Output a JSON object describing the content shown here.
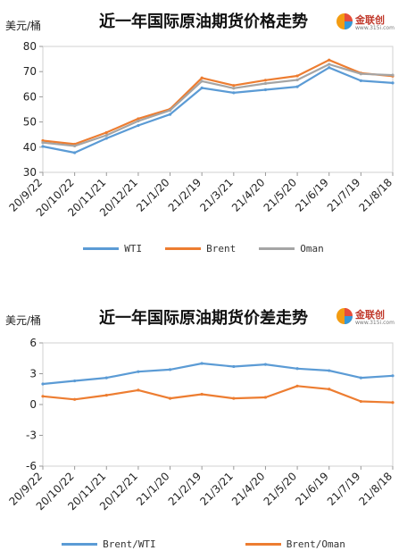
{
  "chart_data": [
    {
      "type": "line",
      "title": "近一年国际原油期货价格走势",
      "ylabel": "美元/桶",
      "ylim": [
        30,
        80
      ],
      "yticks": [
        30,
        40,
        50,
        60,
        70,
        80
      ],
      "categories": [
        "20/9/22",
        "20/10/22",
        "20/11/21",
        "20/12/21",
        "21/1/20",
        "21/2/19",
        "21/3/21",
        "21/4/20",
        "21/5/20",
        "21/6/19",
        "21/7/19",
        "21/8/18"
      ],
      "grid": false,
      "legend": "bottom",
      "series": [
        {
          "name": "WTI",
          "color": "#5B9BD5",
          "values": [
            40.3,
            37.8,
            43.5,
            48.6,
            53.0,
            63.5,
            61.6,
            62.8,
            64.0,
            71.6,
            66.4,
            65.5
          ]
        },
        {
          "name": "Brent",
          "color": "#ED7D31",
          "values": [
            42.6,
            41.2,
            45.8,
            51.3,
            55.1,
            67.5,
            64.5,
            66.6,
            68.3,
            74.6,
            69.4,
            68.2
          ]
        },
        {
          "name": "Oman",
          "color": "#A5A5A5",
          "values": [
            41.8,
            40.5,
            44.7,
            50.4,
            54.6,
            66.2,
            63.4,
            65.3,
            66.7,
            72.9,
            69.1,
            68.6
          ]
        }
      ]
    },
    {
      "type": "line",
      "title": "近一年国际原油期货价差走势",
      "ylabel": "美元/桶",
      "ylim": [
        -6,
        6
      ],
      "yticks": [
        -6,
        -3,
        0,
        3,
        6
      ],
      "categories": [
        "20/9/22",
        "20/10/22",
        "20/11/21",
        "20/12/21",
        "21/1/20",
        "21/2/19",
        "21/3/21",
        "21/4/20",
        "21/5/20",
        "21/6/19",
        "21/7/19",
        "21/8/18"
      ],
      "grid": false,
      "legend": "bottom",
      "series": [
        {
          "name": "Brent/WTI",
          "color": "#5B9BD5",
          "values": [
            2.0,
            2.3,
            2.6,
            3.2,
            3.4,
            4.0,
            3.7,
            3.9,
            3.5,
            3.3,
            2.6,
            2.8
          ]
        },
        {
          "name": "Brent/Oman",
          "color": "#ED7D31",
          "values": [
            0.8,
            0.5,
            0.9,
            1.4,
            0.6,
            1.0,
            0.6,
            0.7,
            1.8,
            1.5,
            0.3,
            0.2
          ]
        }
      ]
    }
  ],
  "panels": [
    {
      "title": "近一年国际原油期货价格走势",
      "unit": "美元/桶"
    },
    {
      "title": "近一年国际原油期货价差走势",
      "unit": "美元/桶"
    }
  ],
  "logo": {
    "brand": "金联创",
    "site": "www.315i.com"
  }
}
